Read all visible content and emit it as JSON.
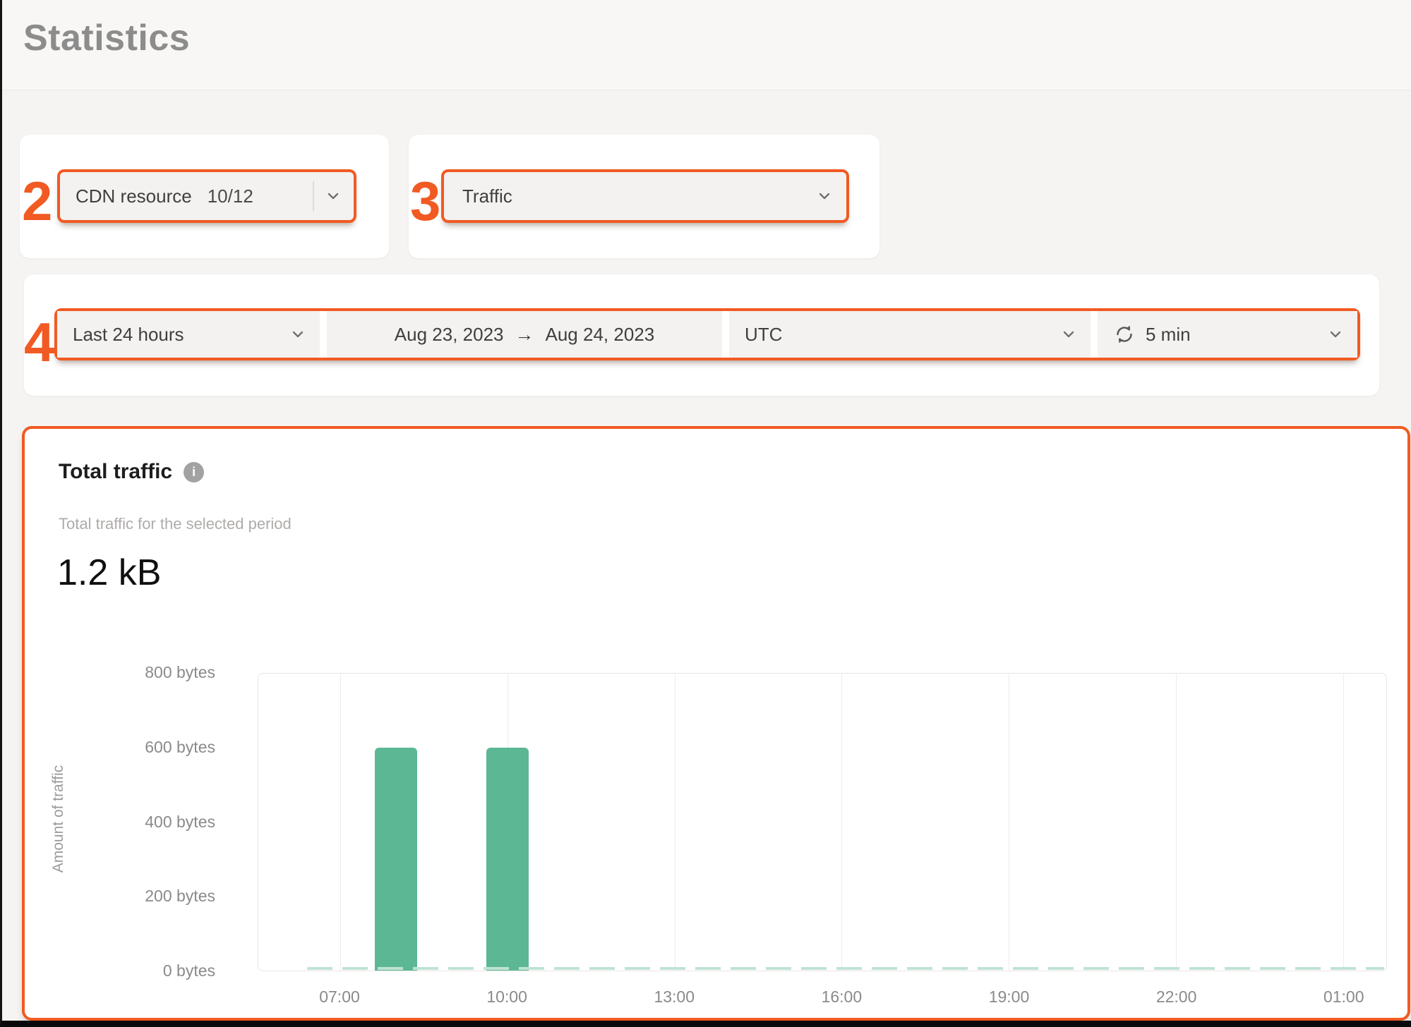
{
  "page": {
    "title": "Statistics"
  },
  "colors": {
    "accent": "#F15A22",
    "bar": "#5CB794",
    "bar_faint": "#BFE3D4"
  },
  "annotations": {
    "step2": "2",
    "step3": "3",
    "step4": "4"
  },
  "resource_selector": {
    "label": "CDN resource",
    "count": "10/12"
  },
  "metric_selector": {
    "value": "Traffic"
  },
  "time_controls": {
    "period": "Last 24 hours",
    "date_from": "Aug 23, 2023",
    "arrow": "→",
    "date_to": "Aug 24, 2023",
    "timezone": "UTC",
    "refresh_interval": "5 min"
  },
  "total_traffic": {
    "title": "Total traffic",
    "info_glyph": "i",
    "subtitle": "Total traffic for the selected period",
    "total_value": "1.2 kB"
  },
  "chart_data": {
    "type": "bar",
    "title": "Total traffic",
    "ylabel": "Amount of traffic",
    "xlabel": "",
    "x_ticks": [
      "07:00",
      "10:00",
      "13:00",
      "16:00",
      "19:00",
      "22:00",
      "01:00"
    ],
    "y_ticks": [
      "800 bytes",
      "600 bytes",
      "400 bytes",
      "200 bytes",
      "0 bytes"
    ],
    "ylim_bytes": [
      0,
      800
    ],
    "grid": "vertical",
    "legend": "none",
    "bars": [
      {
        "time": "08:00",
        "bytes": 600
      },
      {
        "time": "10:00",
        "bytes": 600
      }
    ],
    "other_intervals_bytes": 0
  }
}
